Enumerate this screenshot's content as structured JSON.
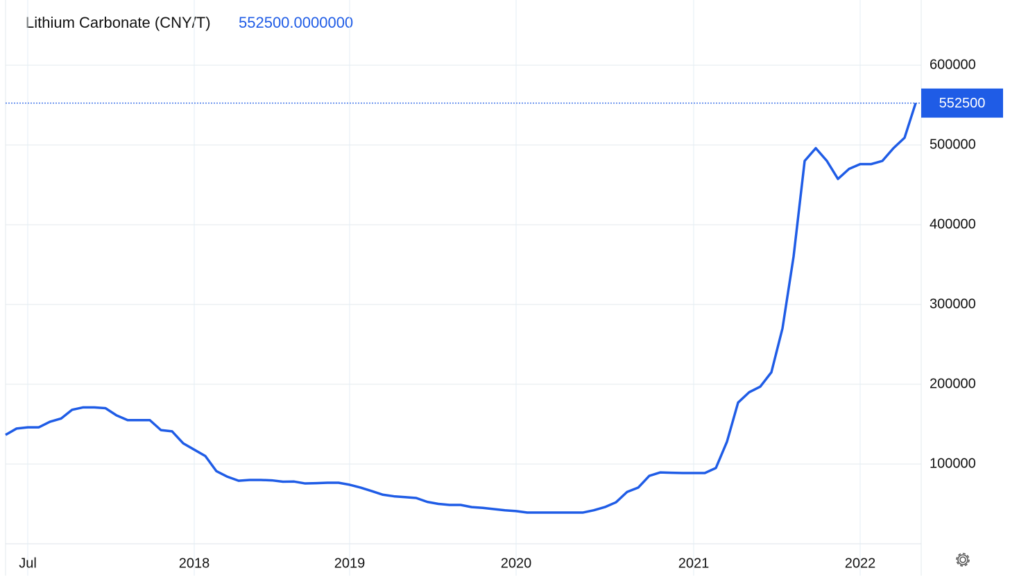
{
  "chart_data": {
    "type": "line",
    "title": "Lithium Carbonate (CNY/T)",
    "last_value_label": "552500.0000000",
    "color": "#1f5ce6",
    "grid": true,
    "ylim": [
      0,
      680000
    ],
    "yticks": [
      100000,
      200000,
      300000,
      400000,
      500000,
      600000
    ],
    "categories": [
      null,
      null,
      "Jul",
      null,
      null,
      null,
      null,
      null,
      null,
      null,
      null,
      null,
      null,
      null,
      null,
      null,
      null,
      "2018",
      null,
      null,
      null,
      null,
      null,
      null,
      null,
      null,
      null,
      null,
      null,
      null,
      null,
      "2019",
      null,
      null,
      null,
      null,
      null,
      null,
      null,
      null,
      null,
      null,
      null,
      null,
      null,
      null,
      "2020",
      null,
      null,
      null,
      null,
      null,
      null,
      null,
      null,
      null,
      null,
      null,
      null,
      null,
      null,
      null,
      "2021",
      null,
      null,
      null,
      null,
      null,
      null,
      null,
      null,
      null,
      null,
      null,
      null,
      null,
      null,
      "2022",
      null,
      null,
      null,
      null,
      null
    ],
    "values": [
      136500,
      144500,
      146000,
      146000,
      153000,
      157000,
      168000,
      171000,
      171000,
      170000,
      161000,
      155000,
      155000,
      155000,
      142500,
      141000,
      126000,
      118000,
      110000,
      91000,
      84000,
      79000,
      80000,
      80000,
      79500,
      77800,
      78000,
      75600,
      76000,
      76500,
      76500,
      74000,
      70400,
      66000,
      61500,
      59500,
      58500,
      57400,
      52500,
      50000,
      48700,
      48700,
      46000,
      45000,
      43500,
      42000,
      41000,
      39100,
      39100,
      39100,
      39100,
      39100,
      39100,
      42000,
      46000,
      52000,
      65000,
      70400,
      85200,
      89500,
      89000,
      88700,
      88700,
      88700,
      95000,
      128000,
      177000,
      190000,
      197000,
      215000,
      270000,
      360000,
      480000,
      496000,
      480000,
      457400,
      470000,
      476000,
      476000,
      480000,
      496000,
      509000,
      552500
    ]
  }
}
